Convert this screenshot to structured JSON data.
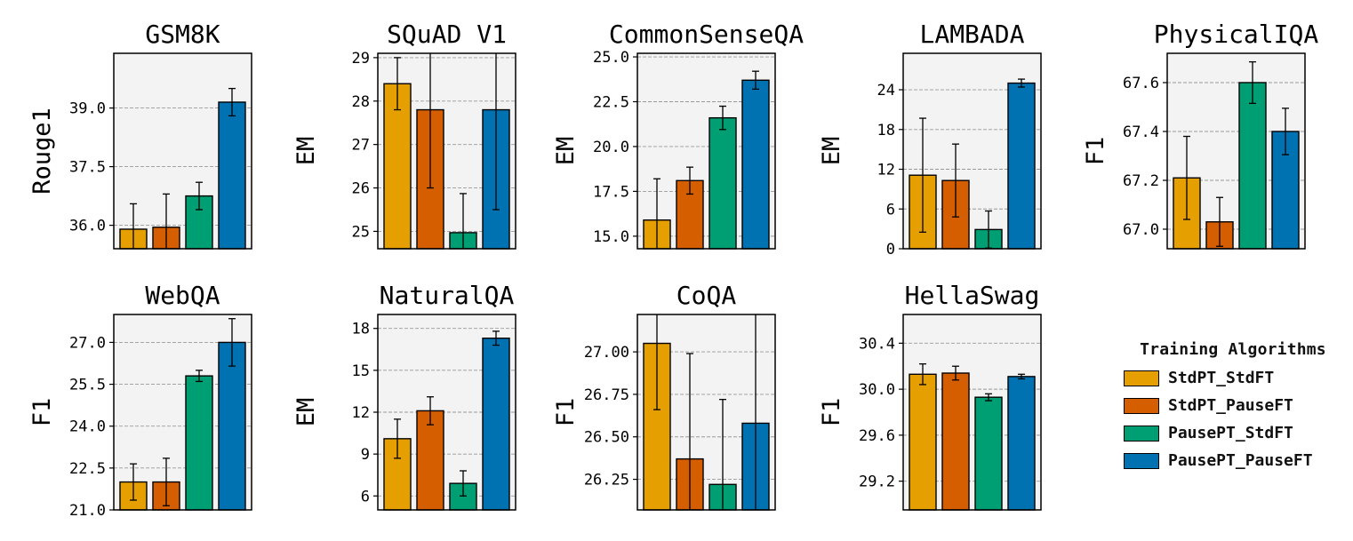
{
  "legend": {
    "title": "Training Algorithms",
    "items": [
      {
        "label": "StdPT_StdFT",
        "color": "#E69F00"
      },
      {
        "label": "StdPT_PauseFT",
        "color": "#D55E00"
      },
      {
        "label": "PausePT_StdFT",
        "color": "#009E73"
      },
      {
        "label": "PausePT_PauseFT",
        "color": "#0072B2"
      }
    ]
  },
  "chart_data": [
    {
      "type": "bar",
      "title": "GSM8K",
      "ylabel": "Rouge1",
      "categories": [
        "StdPT_StdFT",
        "StdPT_PauseFT",
        "PausePT_StdFT",
        "PausePT_PauseFT"
      ],
      "values": [
        35.9,
        35.95,
        36.75,
        39.15
      ],
      "errors": [
        0.65,
        0.85,
        0.35,
        0.35
      ],
      "ylim": [
        35.4,
        40.4
      ],
      "yticks": [
        36.0,
        37.5,
        39.0
      ],
      "tick_labels": [
        "36.0",
        "37.5",
        "39.0"
      ]
    },
    {
      "type": "bar",
      "title": "SQuAD V1",
      "ylabel": "EM",
      "categories": [
        "StdPT_StdFT",
        "StdPT_PauseFT",
        "PausePT_StdFT",
        "PausePT_PauseFT"
      ],
      "values": [
        28.4,
        27.8,
        24.97,
        27.8
      ],
      "errors": [
        0.6,
        1.8,
        0.9,
        2.3
      ],
      "ylim": [
        24.6,
        29.1
      ],
      "yticks": [
        25,
        26,
        27,
        28,
        29
      ],
      "tick_labels": [
        "25",
        "26",
        "27",
        "28",
        "29"
      ]
    },
    {
      "type": "bar",
      "title": "CommonSenseQA",
      "ylabel": "EM",
      "categories": [
        "StdPT_StdFT",
        "StdPT_PauseFT",
        "PausePT_StdFT",
        "PausePT_PauseFT"
      ],
      "values": [
        15.9,
        18.1,
        21.6,
        23.7
      ],
      "errors": [
        2.3,
        0.75,
        0.65,
        0.5
      ],
      "ylim": [
        14.3,
        25.2
      ],
      "yticks": [
        15.0,
        17.5,
        20.0,
        22.5,
        25.0
      ],
      "tick_labels": [
        "15.0",
        "17.5",
        "20.0",
        "22.5",
        "25.0"
      ]
    },
    {
      "type": "bar",
      "title": "LAMBADA",
      "ylabel": "EM",
      "categories": [
        "StdPT_StdFT",
        "StdPT_PauseFT",
        "PausePT_StdFT",
        "PausePT_PauseFT"
      ],
      "values": [
        11.1,
        10.3,
        2.9,
        25.0
      ],
      "errors": [
        8.6,
        5.5,
        2.8,
        0.6
      ],
      "ylim": [
        0,
        29.5
      ],
      "yticks": [
        0,
        6,
        12,
        18,
        24
      ],
      "tick_labels": [
        "0",
        "6",
        "12",
        "18",
        "24"
      ]
    },
    {
      "type": "bar",
      "title": "PhysicalIQA",
      "ylabel": "F1",
      "categories": [
        "StdPT_StdFT",
        "StdPT_PauseFT",
        "PausePT_StdFT",
        "PausePT_PauseFT"
      ],
      "values": [
        67.21,
        67.03,
        67.6,
        67.4
      ],
      "errors": [
        0.17,
        0.1,
        0.085,
        0.095
      ],
      "ylim": [
        66.92,
        67.72
      ],
      "yticks": [
        67.0,
        67.2,
        67.4,
        67.6
      ],
      "tick_labels": [
        "67.0",
        "67.2",
        "67.4",
        "67.6"
      ]
    },
    {
      "type": "bar",
      "title": "WebQA",
      "ylabel": "F1",
      "categories": [
        "StdPT_StdFT",
        "StdPT_PauseFT",
        "PausePT_StdFT",
        "PausePT_PauseFT"
      ],
      "values": [
        22.0,
        22.0,
        25.8,
        27.0
      ],
      "errors": [
        0.65,
        0.85,
        0.2,
        0.85
      ],
      "ylim": [
        21.0,
        28.0
      ],
      "yticks": [
        21.0,
        22.5,
        24.0,
        25.5,
        27.0
      ],
      "tick_labels": [
        "21.0",
        "22.5",
        "24.0",
        "25.5",
        "27.0"
      ]
    },
    {
      "type": "bar",
      "title": "NaturalQA",
      "ylabel": "EM",
      "categories": [
        "StdPT_StdFT",
        "StdPT_PauseFT",
        "PausePT_StdFT",
        "PausePT_PauseFT"
      ],
      "values": [
        10.1,
        12.1,
        6.9,
        17.3
      ],
      "errors": [
        1.4,
        1.0,
        0.9,
        0.5
      ],
      "ylim": [
        5.0,
        19.0
      ],
      "yticks": [
        6,
        9,
        12,
        15,
        18
      ],
      "tick_labels": [
        "6",
        "9",
        "12",
        "15",
        "18"
      ]
    },
    {
      "type": "bar",
      "title": "CoQA",
      "ylabel": "F1",
      "categories": [
        "StdPT_StdFT",
        "StdPT_PauseFT",
        "PausePT_StdFT",
        "PausePT_PauseFT"
      ],
      "values": [
        27.05,
        26.37,
        26.22,
        26.58
      ],
      "errors": [
        0.39,
        0.62,
        0.5,
        0.66
      ],
      "ylim": [
        26.07,
        27.22
      ],
      "yticks": [
        26.25,
        26.5,
        26.75,
        27.0
      ],
      "tick_labels": [
        "26.25",
        "26.50",
        "26.75",
        "27.00"
      ]
    },
    {
      "type": "bar",
      "title": "HellaSwag",
      "ylabel": "F1",
      "categories": [
        "StdPT_StdFT",
        "StdPT_PauseFT",
        "PausePT_StdFT",
        "PausePT_PauseFT"
      ],
      "values": [
        30.13,
        30.14,
        29.93,
        30.11
      ],
      "errors": [
        0.09,
        0.06,
        0.03,
        0.02
      ],
      "ylim": [
        28.95,
        30.65
      ],
      "yticks": [
        29.2,
        29.6,
        30.0,
        30.4
      ],
      "tick_labels": [
        "29.2",
        "29.6",
        "30.0",
        "30.4"
      ]
    }
  ]
}
